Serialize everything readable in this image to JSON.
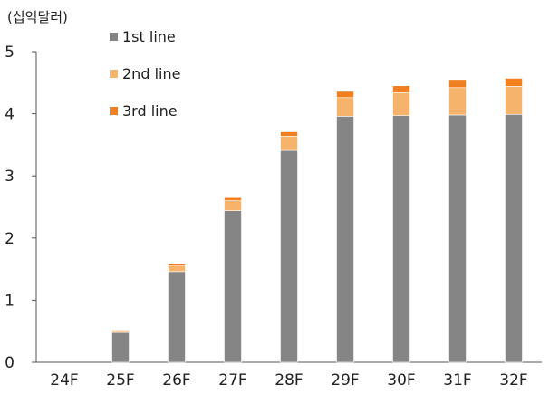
{
  "chart_data": {
    "type": "bar",
    "stacked": true,
    "unit_label": "(십억달러)",
    "categories": [
      "24F",
      "25F",
      "26F",
      "27F",
      "28F",
      "29F",
      "30F",
      "31F",
      "32F"
    ],
    "series": [
      {
        "name": "1st line",
        "color": "#858585",
        "values": [
          0.0,
          0.48,
          1.46,
          2.44,
          3.41,
          3.96,
          3.97,
          3.98,
          3.99
        ]
      },
      {
        "name": "2nd line",
        "color": "#f6b36b",
        "values": [
          0.0,
          0.03,
          0.09,
          0.16,
          0.23,
          0.3,
          0.37,
          0.44,
          0.45
        ]
      },
      {
        "name": "3rd line",
        "color": "#f07f1f",
        "values": [
          0.0,
          0.01,
          0.03,
          0.05,
          0.07,
          0.1,
          0.11,
          0.13,
          0.13
        ]
      }
    ],
    "ylim": [
      0,
      5
    ],
    "yticks": [
      0,
      1,
      2,
      3,
      4,
      5
    ],
    "grid": false,
    "legend_position": "top-left"
  }
}
